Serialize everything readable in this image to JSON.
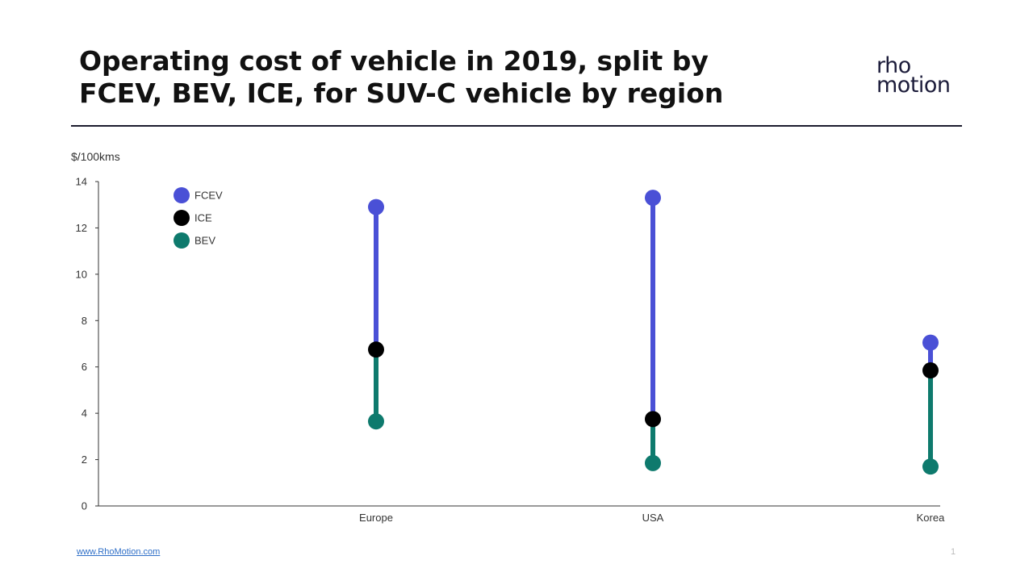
{
  "header": {
    "title_line1": "Operating cost of vehicle in 2019, split by",
    "title_line2": "FCEV, BEV, ICE, for SUV-C vehicle by region",
    "logo_line1": "rho",
    "logo_line2": "motion"
  },
  "footer": {
    "link": "www.RhoMotion.com",
    "page": "1"
  },
  "colors": {
    "FCEV": "#4a50d6",
    "ICE": "#000000",
    "BEV": "#0e7a6d"
  },
  "chart_data": {
    "type": "scatter",
    "title": "Operating cost of vehicle in 2019, split by FCEV, BEV, ICE, for SUV-C vehicle by region",
    "ylabel": "$/100kms",
    "xlabel": "",
    "ylim": [
      0,
      14
    ],
    "yticks": [
      0,
      2,
      4,
      6,
      8,
      10,
      12,
      14
    ],
    "grid": false,
    "legend_position": "top-left",
    "categories": [
      "Europe",
      "USA",
      "Korea"
    ],
    "series": [
      {
        "name": "FCEV",
        "values": [
          12.9,
          13.3,
          7.05
        ]
      },
      {
        "name": "ICE",
        "values": [
          6.75,
          3.75,
          5.85
        ]
      },
      {
        "name": "BEV",
        "values": [
          3.65,
          1.85,
          1.7
        ]
      }
    ]
  }
}
